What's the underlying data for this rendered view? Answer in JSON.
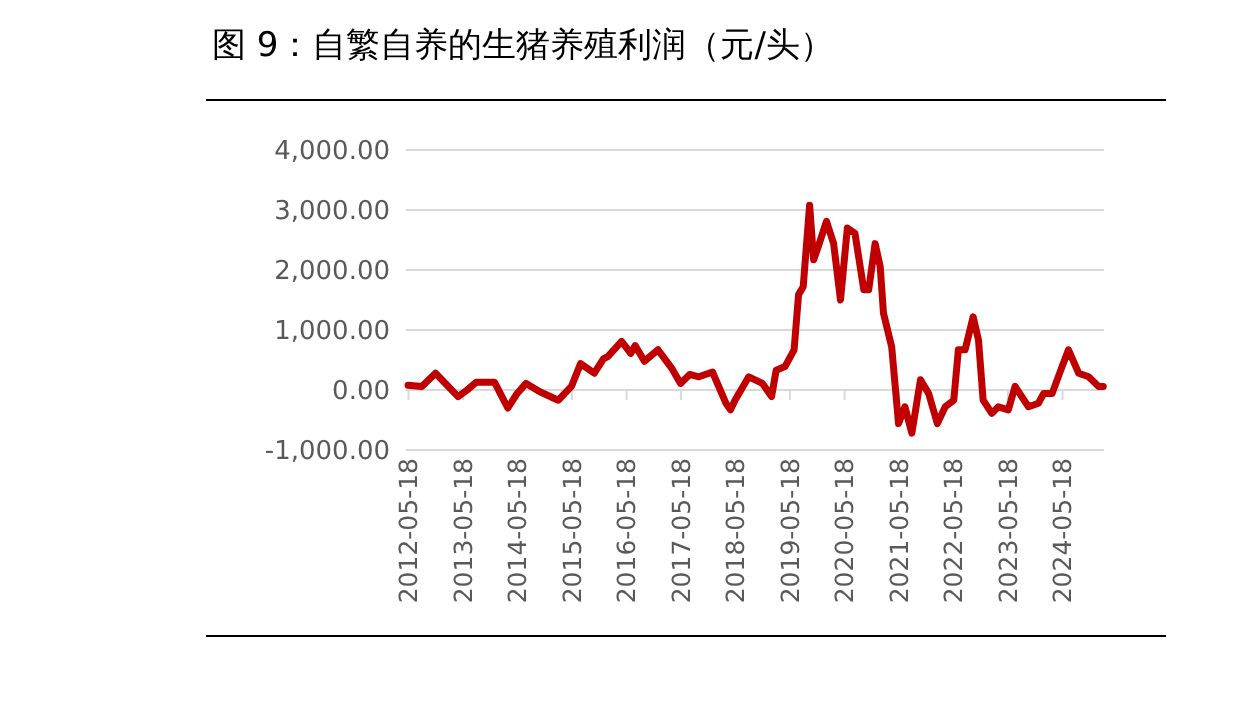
{
  "chart_data": {
    "type": "line",
    "title": "图 9：自繁自养的生猪养殖利润（元/头）",
    "x": [
      "2012-05-15",
      "2012-08-15",
      "2012-11-15",
      "2013-04-15",
      "2013-06-15",
      "2013-08-15",
      "2013-12-15",
      "2014-02-15",
      "2014-03-15",
      "2014-05-15",
      "2014-07-15",
      "2014-10-15",
      "2015-02-15",
      "2015-05-15",
      "2015-07-15",
      "2015-10-15",
      "2015-12-15",
      "2016-01-15",
      "2016-04-15",
      "2016-06-15",
      "2016-07-15",
      "2016-09-15",
      "2016-12-15",
      "2017-03-15",
      "2017-05-15",
      "2017-07-15",
      "2017-09-15",
      "2017-12-15",
      "2018-03-15",
      "2018-04-15",
      "2018-05-15",
      "2018-08-15",
      "2018-11-15",
      "2019-01-15",
      "2019-02-15",
      "2019-04-15",
      "2019-06-15",
      "2019-07-15",
      "2019-08-15",
      "2019-09-27",
      "2019-10-24",
      "2019-11-24",
      "2020-01-18",
      "2020-03-06",
      "2020-04-21",
      "2020-06-06",
      "2020-07-27",
      "2020-09-24",
      "2020-10-27",
      "2020-12-09",
      "2021-01-12",
      "2021-02-03",
      "2021-03-30",
      "2021-05-15",
      "2021-06-27",
      "2021-08-12",
      "2021-10-09",
      "2021-12-03",
      "2022-01-30",
      "2022-03-24",
      "2022-05-20",
      "2022-06-20",
      "2022-08-04",
      "2022-09-27",
      "2022-11-02",
      "2022-12-03",
      "2023-01-30",
      "2023-03-15",
      "2023-05-21",
      "2023-07-05",
      "2023-10-03",
      "2023-12-09",
      "2024-01-12",
      "2024-03-09",
      "2024-05-15",
      "2024-06-27",
      "2024-09-03",
      "2024-11-09",
      "2025-01-15",
      "2025-02-15"
    ],
    "series": [
      {
        "color": "#c00000",
        "values": [
          80,
          60,
          280,
          -110,
          0,
          130,
          130,
          -170,
          -300,
          -60,
          110,
          -30,
          -170,
          60,
          440,
          280,
          520,
          560,
          810,
          610,
          740,
          480,
          670,
          370,
          110,
          260,
          220,
          300,
          -220,
          -330,
          -170,
          220,
          110,
          -110,
          330,
          390,
          670,
          1590,
          1720,
          3080,
          2170,
          2390,
          2810,
          2440,
          1500,
          2700,
          2610,
          1670,
          1670,
          2440,
          2060,
          1280,
          720,
          -560,
          -280,
          -720,
          170,
          -60,
          -560,
          -280,
          -170,
          670,
          670,
          1220,
          830,
          -170,
          -390,
          -280,
          -330,
          60,
          -280,
          -220,
          -60,
          -60,
          390,
          670,
          280,
          220,
          60,
          60
        ]
      }
    ],
    "xlim": [
      "2012-05-01",
      "2025-02-20"
    ],
    "xticks": [
      "2012-05-18",
      "2013-05-18",
      "2014-05-18",
      "2015-05-18",
      "2016-05-18",
      "2017-05-18",
      "2018-05-18",
      "2019-05-18",
      "2020-05-18",
      "2021-05-18",
      "2022-05-18",
      "2023-05-18",
      "2024-05-18"
    ],
    "ylim": [
      -1000,
      4000
    ],
    "yticks": [
      {
        "value": -1000,
        "label": "-1,000.00"
      },
      {
        "value": 0,
        "label": "0.00"
      },
      {
        "value": 1000,
        "label": "1,000.00"
      },
      {
        "value": 2000,
        "label": "2,000.00"
      },
      {
        "value": 3000,
        "label": "3,000.00"
      },
      {
        "value": 4000,
        "label": "4,000.00"
      }
    ],
    "grid": "y"
  }
}
